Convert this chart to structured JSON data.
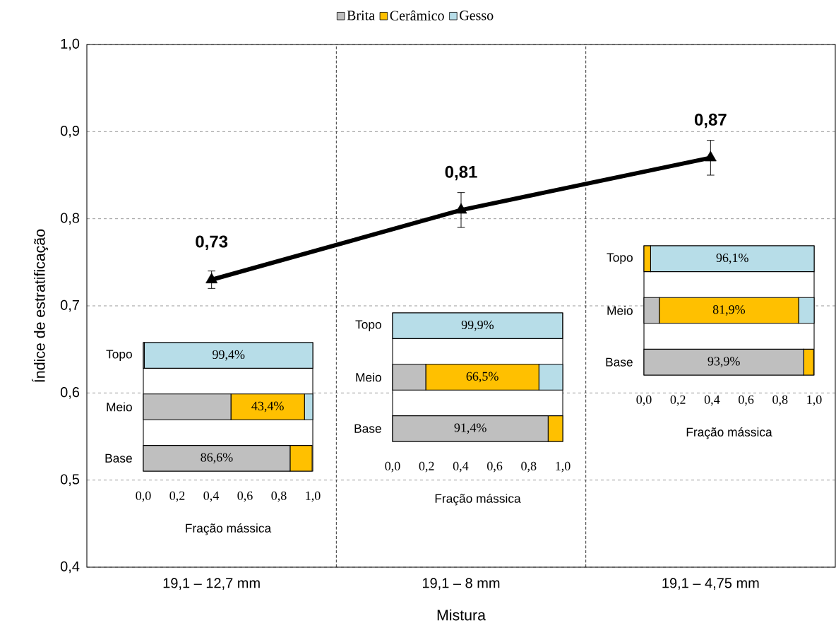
{
  "chart_data": [
    {
      "type": "line",
      "xlabel": "Mistura",
      "ylabel": "Índice de estratificação",
      "categories": [
        "19,1 – 12,7 mm",
        "19,1 – 8 mm",
        "19,1 – 4,75 mm"
      ],
      "series": [
        {
          "color": "#000000",
          "values": [
            0.73,
            0.81,
            0.87
          ],
          "errors": [
            0.01,
            0.02,
            0.02
          ],
          "value_labels": [
            "0,73",
            "0,81",
            "0,87"
          ]
        }
      ],
      "ylim": [
        0.4,
        1.0
      ],
      "yticks": [
        {
          "value": 0.4,
          "label": "0,4"
        },
        {
          "value": 0.5,
          "label": "0,5"
        },
        {
          "value": 0.6,
          "label": "0,6"
        },
        {
          "value": 0.7,
          "label": "0,7"
        },
        {
          "value": 0.8,
          "label": "0,8"
        },
        {
          "value": 0.9,
          "label": "0,9"
        },
        {
          "value": 1.0,
          "label": "1,0"
        }
      ],
      "grid": true,
      "marker": "triangle"
    },
    {
      "type": "bar",
      "orientation": "horizontal",
      "stacked": true,
      "xlabel": "Fração mássica",
      "categories": [
        "Topo",
        "Meio",
        "Base"
      ],
      "series": [
        {
          "name": "Brita",
          "color": "#bfbfbf",
          "values": [
            0.006,
            0.517,
            0.866
          ],
          "value_labels": [
            null,
            null,
            "86,6%"
          ]
        },
        {
          "name": "Cerâmico",
          "color": "#ffc000",
          "values": [
            0,
            0.434,
            0.13
          ],
          "value_labels": [
            null,
            "43,4%",
            null
          ]
        },
        {
          "name": "Gesso",
          "color": "#b7dde8",
          "values": [
            0.994,
            0.049,
            null
          ],
          "value_labels": [
            "99,4%",
            null,
            null
          ]
        }
      ],
      "xlim": [
        0,
        1
      ],
      "xticks": [
        {
          "value": 0,
          "label": "0,0"
        },
        {
          "value": 0.2,
          "label": "0,2"
        },
        {
          "value": 0.4,
          "label": "0,4"
        },
        {
          "value": 0.6,
          "label": "0,6"
        },
        {
          "value": 0.8,
          "label": "0,8"
        },
        {
          "value": 1.0,
          "label": "1,0"
        }
      ],
      "legend": "top"
    },
    {
      "type": "bar",
      "orientation": "horizontal",
      "stacked": true,
      "xlabel": "Fração mássica",
      "categories": [
        "Topo",
        "Meio",
        "Base"
      ],
      "series": [
        {
          "color": "#bfbfbf",
          "values": [
            null,
            0.195,
            0.914
          ],
          "value_labels": [
            null,
            null,
            "91,4%"
          ]
        },
        {
          "color": "#ffc000",
          "values": [
            0,
            0.665,
            0.086
          ],
          "value_labels": [
            null,
            "66,5%",
            null
          ]
        },
        {
          "color": "#b7dde8",
          "values": [
            0.999,
            0.14,
            0
          ],
          "value_labels": [
            "99,9%",
            null,
            null
          ]
        }
      ],
      "xlim": [
        0,
        1
      ],
      "xticks": [
        {
          "value": 0,
          "label": "0,0"
        },
        {
          "value": 0.2,
          "label": "0,2"
        },
        {
          "value": 0.4,
          "label": "0,4"
        },
        {
          "value": 0.6,
          "label": "0,6"
        },
        {
          "value": 0.8,
          "label": "0,8"
        },
        {
          "value": 1.0,
          "label": "1,0"
        }
      ]
    },
    {
      "type": "bar",
      "orientation": "horizontal",
      "stacked": true,
      "xlabel": "Fração mássica",
      "categories": [
        "Topo",
        "Meio",
        "Base"
      ],
      "series": [
        {
          "color": "#bfbfbf",
          "values": [
            0,
            0.09,
            0.939
          ],
          "value_labels": [
            null,
            null,
            "93,9%"
          ]
        },
        {
          "color": "#ffc000",
          "values": [
            0.039,
            0.819,
            0.058
          ],
          "value_labels": [
            null,
            "81,9%",
            null
          ]
        },
        {
          "color": "#b7dde8",
          "values": [
            0.961,
            0.091,
            null
          ],
          "value_labels": [
            "96,1%",
            null,
            null
          ]
        }
      ],
      "xlim": [
        0,
        1
      ],
      "xticks": [
        {
          "value": 0,
          "label": "0,0"
        },
        {
          "value": 0.2,
          "label": "0,2"
        },
        {
          "value": 0.4,
          "label": "0,4"
        },
        {
          "value": 0.6,
          "label": "0,6"
        },
        {
          "value": 0.8,
          "label": "0,8"
        },
        {
          "value": 1.0,
          "label": "1,0"
        }
      ]
    }
  ]
}
